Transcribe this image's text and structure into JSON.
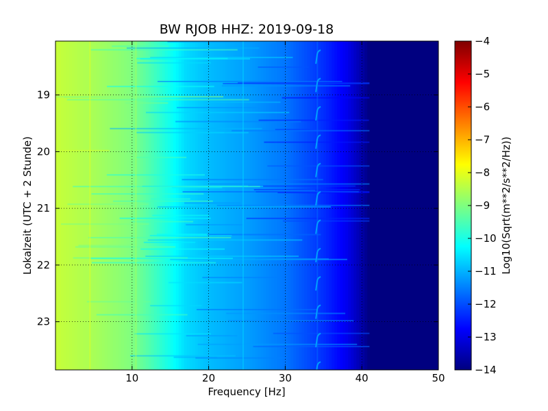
{
  "chart_data": {
    "type": "heatmap",
    "title": "BW RJOB HHZ: 2019-09-18",
    "xlabel": "Frequency [Hz]",
    "ylabel": "Lokalzeit (UTC + 2 Stunde)",
    "xlim": [
      0,
      50
    ],
    "ylim": [
      18.05,
      23.85
    ],
    "x_ticks": [
      10,
      20,
      30,
      40,
      50
    ],
    "y_ticks": [
      19,
      20,
      21,
      22,
      23
    ],
    "y_axis_inverted": true,
    "grid": true,
    "colormap": "jet",
    "colorbar": {
      "label": "Log10(Sqrt(m**2/s**2/Hz))",
      "range": [
        -14,
        -4
      ],
      "ticks": [
        -4,
        -5,
        -6,
        -7,
        -8,
        -9,
        -10,
        -11,
        -12,
        -13,
        -14
      ]
    },
    "approximate_level_profile": {
      "frequency_hz": [
        0,
        5,
        10,
        12,
        15,
        17,
        20,
        25,
        30,
        35,
        38,
        40,
        41,
        50
      ],
      "log10_amplitude": [
        -8.3,
        -8.6,
        -9.0,
        -9.4,
        -10.1,
        -10.6,
        -10.9,
        -11.2,
        -11.6,
        -12.3,
        -12.9,
        -13.6,
        -14.0,
        -14.0
      ]
    },
    "line_features_hz": [
      4.5,
      10.5,
      24.5,
      34.2
    ],
    "annotations": []
  }
}
